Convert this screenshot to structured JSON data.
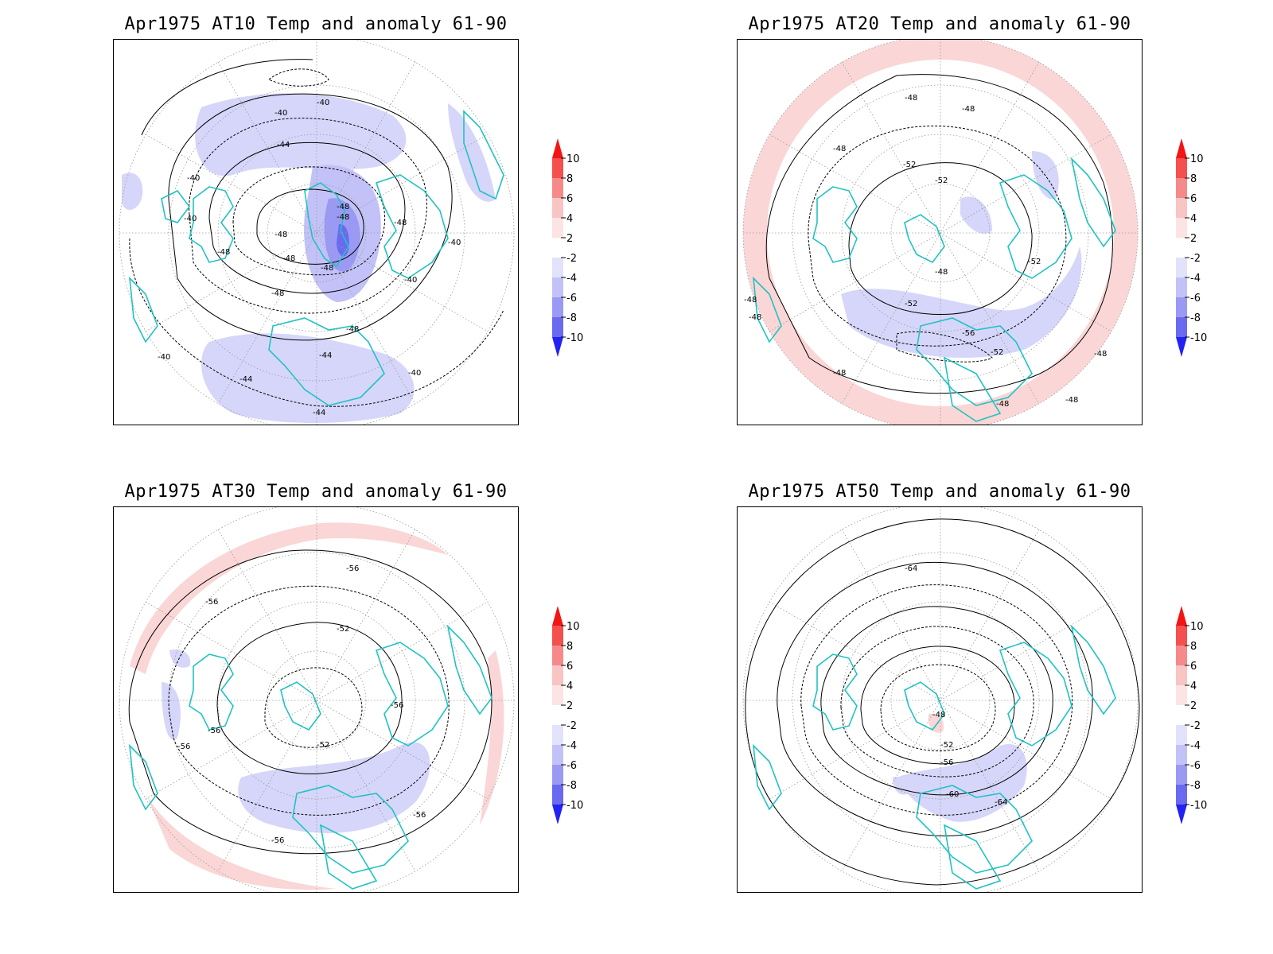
{
  "panels": [
    {
      "title": "Apr1975 AT10 Temp and anomaly 61-90",
      "level": "AT10",
      "contour_labels": [
        "-40",
        "-40",
        "-40",
        "-40",
        "-40",
        "-40",
        "-40",
        "-40",
        "-44",
        "-44",
        "-44",
        "-44",
        "-48",
        "-48",
        "-48",
        "-48",
        "-48",
        "-48",
        "-48",
        "-48",
        "-48"
      ]
    },
    {
      "title": "Apr1975 AT20 Temp and anomaly 61-90",
      "level": "AT20",
      "contour_labels": [
        "-48",
        "-48",
        "-48",
        "-48",
        "-48",
        "-48",
        "-48",
        "-48",
        "-48",
        "-48",
        "-52",
        "-52",
        "-52",
        "-52",
        "-52",
        "-56"
      ]
    },
    {
      "title": "Apr1975 AT30 Temp and anomaly 61-90",
      "level": "AT30",
      "contour_labels": [
        "-56",
        "-56",
        "-56",
        "-56",
        "-56",
        "-56",
        "-56",
        "-52",
        "-52"
      ]
    },
    {
      "title": "Apr1975 AT50 Temp and anomaly 61-90",
      "level": "AT50",
      "contour_labels": [
        "-64",
        "-64",
        "-60",
        "-56",
        "-52",
        "-48"
      ]
    }
  ],
  "colorbar": {
    "labels": [
      "10",
      "8",
      "6",
      "4",
      "2",
      "-2",
      "-4",
      "-6",
      "-8",
      "-10"
    ],
    "colors": [
      "#f41414",
      "#f55050",
      "#f68a8a",
      "#f8c4c4",
      "#fde4e4",
      "#ffffff",
      "#e2e2fc",
      "#c2c2f8",
      "#9a9af4",
      "#6a6af0",
      "#2222f4"
    ]
  },
  "colors": {
    "coastline": "#22c2c2",
    "contour": "#000000",
    "grid": "#9a9a9a",
    "negative_anomaly": "#d6d6fa",
    "positive_anomaly": "#fad6d6"
  }
}
